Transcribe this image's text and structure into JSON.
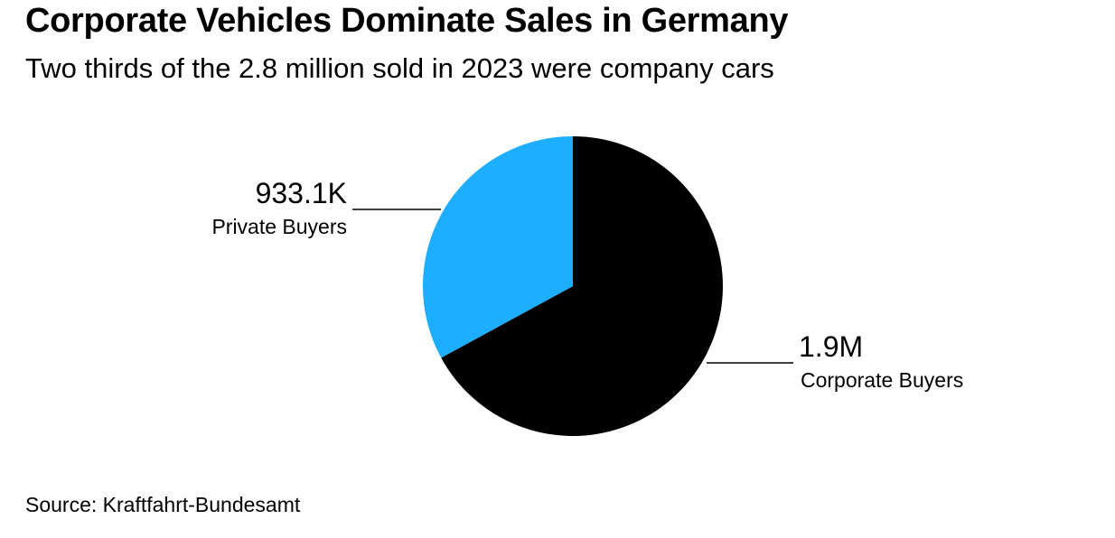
{
  "chart_data": {
    "type": "pie",
    "title": "Corporate Vehicles Dominate Sales in Germany",
    "subtitle": "Two thirds of the 2.8 million sold in 2023 were company cars",
    "source": "Source: Kraftfahrt-Bundesamt",
    "start_angle_deg": 0,
    "direction": "clockwise",
    "slices": [
      {
        "name": "Corporate Buyers",
        "value": 1900000,
        "display": "1.9M",
        "color": "#000000",
        "label_side": "right"
      },
      {
        "name": "Private Buyers",
        "value": 933100,
        "display": "933.1K",
        "color": "#1eaeff",
        "label_side": "left"
      }
    ]
  }
}
